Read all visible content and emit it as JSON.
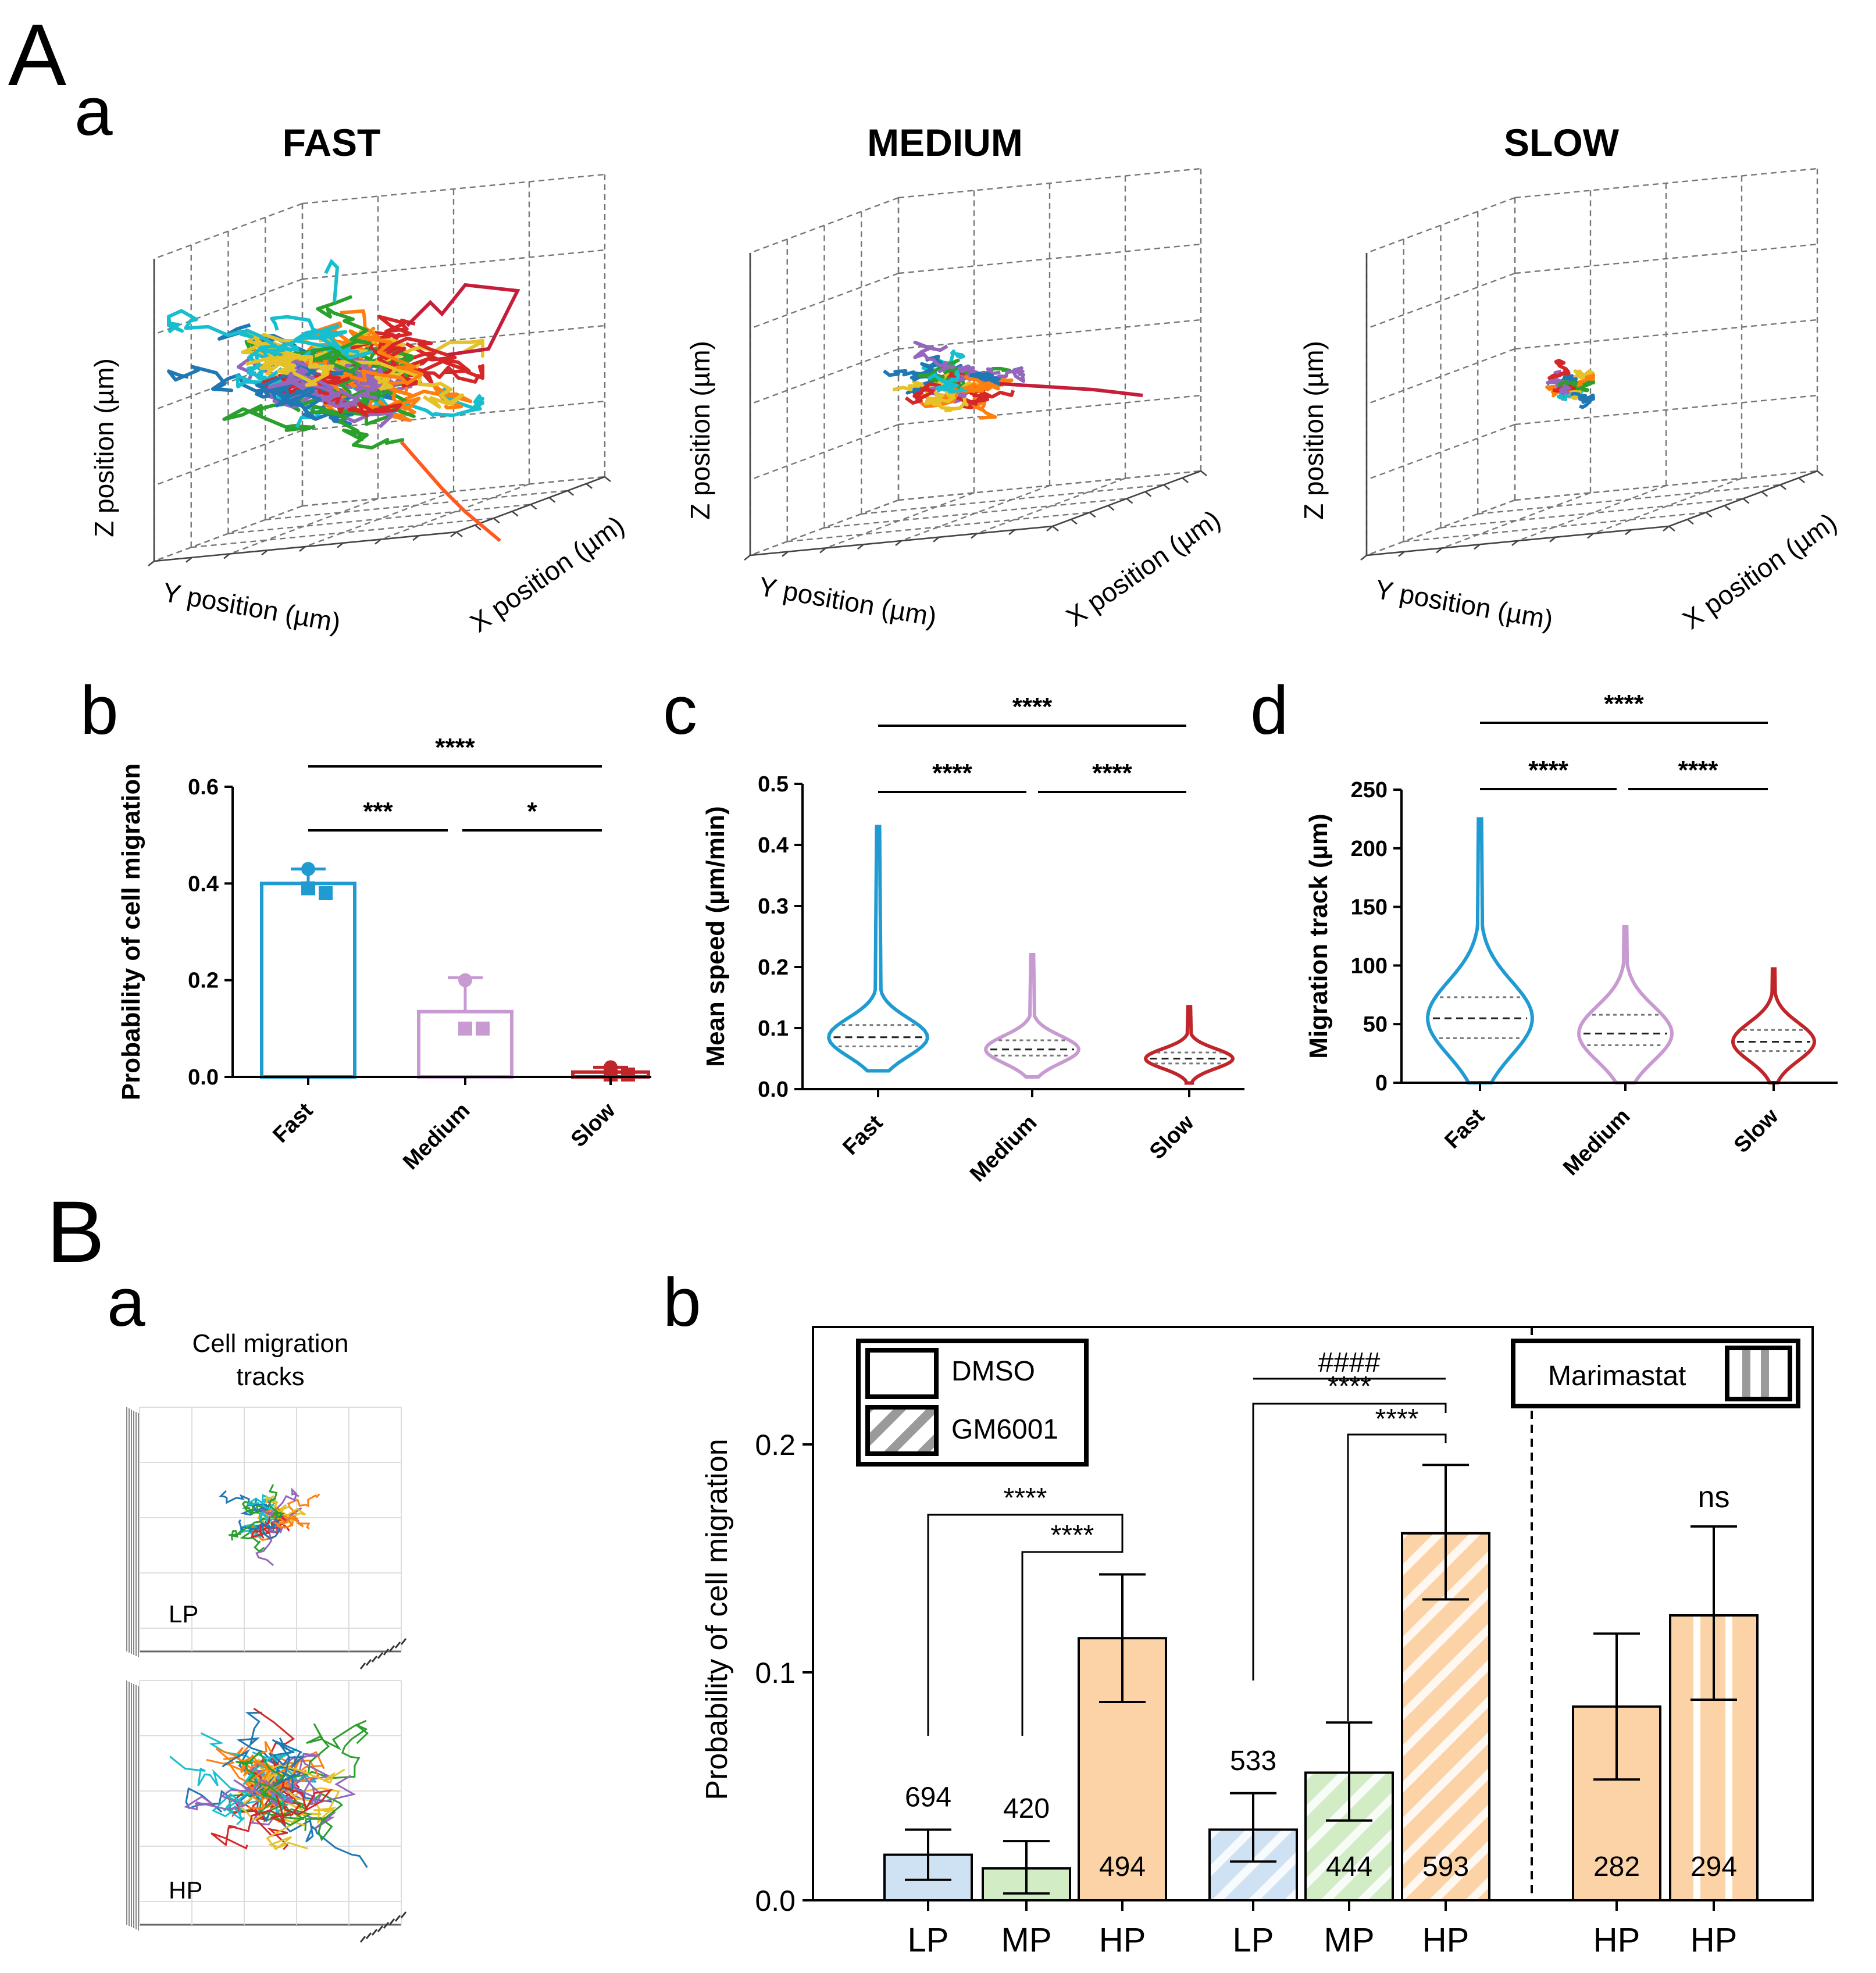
{
  "panel_letters": {
    "A": "A",
    "a": "a",
    "b": "b",
    "c": "c",
    "d": "d",
    "B": "B",
    "Ba": "a",
    "Bb": "b"
  },
  "tracks3d": [
    {
      "title": "FAST",
      "xlabel": "X position (µm)",
      "ylabel": "Y position (µm)",
      "zlabel": "Z position (µm)"
    },
    {
      "title": "MEDIUM",
      "xlabel": "X position (µm)",
      "ylabel": "Y position (µm)",
      "zlabel": "Z position (µm)"
    },
    {
      "title": "SLOW",
      "xlabel": "X position (µm)",
      "ylabel": "Y position (µm)",
      "zlabel": "Z position (µm)"
    }
  ],
  "track_colors": [
    "#1f77b4",
    "#ff7f0e",
    "#2ca02c",
    "#d62728",
    "#9467bd",
    "#17becf",
    "#e6c229"
  ],
  "cell_tracks": {
    "title_line1": "Cell migration",
    "title_line2": "tracks",
    "labels": [
      "LP",
      "HP"
    ]
  },
  "chart_data": [
    {
      "id": "Ab",
      "type": "bar",
      "categories": [
        "Fast",
        "Medium",
        "Slow"
      ],
      "values": [
        0.4,
        0.135,
        0.01
      ],
      "errors": [
        0.03,
        0.07,
        0.01
      ],
      "points": [
        [
          0.43,
          0.39,
          0.38
        ],
        [
          0.2,
          0.1,
          0.1
        ],
        [
          0.02,
          0.005,
          0.005
        ]
      ],
      "colors": [
        "#1f9bd1",
        "#c79bd1",
        "#c0252a"
      ],
      "ylabel": "Probability of cell migration",
      "ylim": [
        0,
        0.6
      ],
      "yticks": [
        "0.0",
        "0.2",
        "0.4",
        "0.6"
      ],
      "significance": [
        {
          "from": 0,
          "to": 2,
          "label": "****"
        },
        {
          "from": 0,
          "to": 1,
          "label": "***"
        },
        {
          "from": 1,
          "to": 2,
          "label": "*"
        }
      ]
    },
    {
      "id": "Ac",
      "type": "violin",
      "categories": [
        "Fast",
        "Medium",
        "Slow"
      ],
      "ylabel": "Mean speed  (µm/min)",
      "ylim": [
        0,
        0.5
      ],
      "yticks": [
        "0.0",
        "0.1",
        "0.2",
        "0.3",
        "0.4",
        "0.5"
      ],
      "medians": [
        0.085,
        0.065,
        0.05
      ],
      "q1": [
        0.07,
        0.055,
        0.042
      ],
      "q3": [
        0.105,
        0.08,
        0.06
      ],
      "mins": [
        0.03,
        0.02,
        0.01
      ],
      "maxs": [
        0.43,
        0.22,
        0.135
      ],
      "colors": [
        "#1f9bd1",
        "#c79bd1",
        "#c0252a"
      ],
      "significance": [
        {
          "from": 0,
          "to": 2,
          "label": "****"
        },
        {
          "from": 0,
          "to": 1,
          "label": "****"
        },
        {
          "from": 1,
          "to": 2,
          "label": "****"
        }
      ]
    },
    {
      "id": "Ad",
      "type": "violin",
      "categories": [
        "Fast",
        "Medium",
        "Slow"
      ],
      "ylabel": "Migration track (µm)",
      "ylim": [
        0,
        250
      ],
      "yticks": [
        "0",
        "50",
        "100",
        "150",
        "200",
        "250"
      ],
      "medians": [
        55,
        42,
        35
      ],
      "q1": [
        38,
        32,
        27
      ],
      "q3": [
        73,
        58,
        45
      ],
      "mins": [
        0,
        0,
        0
      ],
      "maxs": [
        225,
        133,
        97
      ],
      "colors": [
        "#1f9bd1",
        "#c79bd1",
        "#c0252a"
      ],
      "significance": [
        {
          "from": 0,
          "to": 2,
          "label": "****"
        },
        {
          "from": 0,
          "to": 1,
          "label": "****"
        },
        {
          "from": 1,
          "to": 2,
          "label": "****"
        }
      ]
    },
    {
      "id": "Bb",
      "type": "bar",
      "categories": [
        "LP",
        "MP",
        "HP",
        "LP",
        "MP",
        "HP",
        "HP",
        "HP"
      ],
      "groups": [
        "DMSO",
        "DMSO",
        "DMSO",
        "GM6001",
        "GM6001",
        "GM6001",
        "Marimastat-DMSO",
        "Marimastat"
      ],
      "values": [
        0.02,
        0.014,
        0.115,
        0.031,
        0.056,
        0.161,
        0.085,
        0.125
      ],
      "err_low": [
        0.009,
        0.003,
        0.087,
        0.017,
        0.035,
        0.132,
        0.053,
        0.088
      ],
      "err_high": [
        0.031,
        0.026,
        0.143,
        0.047,
        0.078,
        0.191,
        0.117,
        0.164
      ],
      "counts": [
        "694",
        "420",
        "494",
        "533",
        "444",
        "593",
        "282",
        "294"
      ],
      "fills": [
        "#cfe2f3",
        "#d2ecc6",
        "#fcd3a6",
        "#cfe2f3",
        "#d2ecc6",
        "#fcd3a6",
        "#fcd3a6",
        "#fcd3a6"
      ],
      "hatch": [
        "none",
        "none",
        "none",
        "diagonal",
        "diagonal",
        "diagonal",
        "none",
        "vertical"
      ],
      "ylabel": "Probability of cell migration",
      "ylim": [
        0,
        0.25
      ],
      "yticks": [
        "0.0",
        "0.1",
        "0.2"
      ],
      "legend": [
        "DMSO",
        "GM6001"
      ],
      "legend_right": "Marimastat",
      "significance": [
        {
          "from": 0,
          "to": 2,
          "label": "****"
        },
        {
          "from": 1,
          "to": 2,
          "label": "****"
        },
        {
          "from": 3,
          "to": 5,
          "label": "****"
        },
        {
          "from": 4,
          "to": 5,
          "label": "****"
        },
        {
          "from": 3,
          "to": 5,
          "label": "####"
        },
        {
          "from": 7,
          "to": 7,
          "label": "ns"
        }
      ]
    }
  ]
}
